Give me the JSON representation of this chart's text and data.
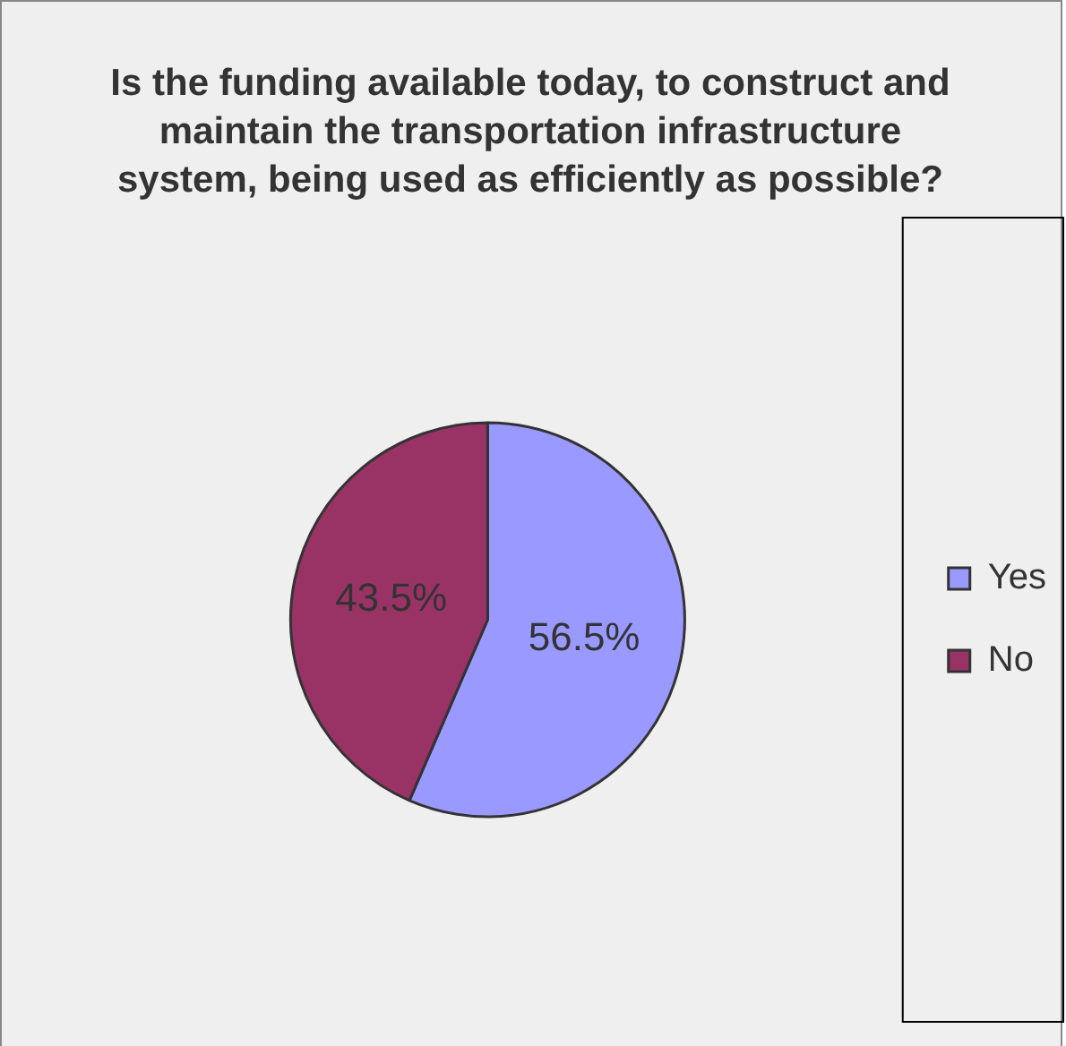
{
  "chart_data": {
    "type": "pie",
    "title": "Is the funding available today, to construct and maintain the transportation infrastructure system, being used as efficiently as possible?",
    "categories": [
      "Yes",
      "No"
    ],
    "values": [
      56.5,
      43.5
    ],
    "value_labels": [
      "56.5%",
      "43.5%"
    ],
    "colors": [
      "#9999ff",
      "#993366"
    ],
    "legend": "right"
  }
}
